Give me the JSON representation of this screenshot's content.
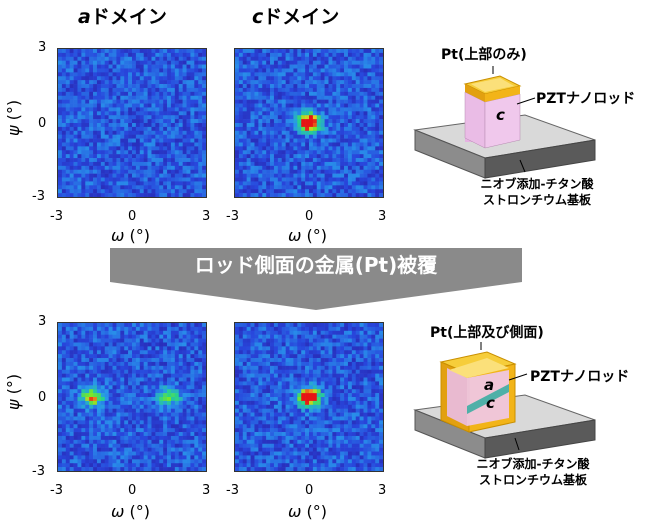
{
  "titles": {
    "a_domain": {
      "letter": "a",
      "text": "ドメイン"
    },
    "c_domain": {
      "letter": "c",
      "text": "ドメイン"
    }
  },
  "axes": {
    "x_label": {
      "symbol": "ω",
      "unit": " (°)"
    },
    "y_label": {
      "symbol": "ψ",
      "unit": " (°)"
    },
    "ticks": [
      "-3",
      "0",
      "3"
    ],
    "range": [
      -3,
      3
    ]
  },
  "arrow": {
    "label": "ロッド側面の金属(Pt)被覆"
  },
  "diagram_top": {
    "pt_label": "Pt(上部のみ)",
    "rod_label": "PZTナノロッド",
    "rod_letter": "c",
    "substrate_label_line1": "ニオブ添加-チタン酸",
    "substrate_label_line2": "ストロンチウム基板"
  },
  "diagram_bottom": {
    "pt_label": "Pt(上部及び側面)",
    "rod_label": "PZTナノロッド",
    "rod_letter_a": "a",
    "rod_letter_c": "c",
    "substrate_label_line1": "ニオブ添加-チタン酸",
    "substrate_label_line2": "ストロンチウム基板"
  },
  "colors": {
    "map_background": "#2a3fc8",
    "arrow": "#8a8a8a",
    "pt_gold": "#f2b418",
    "rod_pink": "#f0c8ec",
    "substrate": "#8c8c8c"
  },
  "maps": [
    {
      "panel": "top-left",
      "peaks": []
    },
    {
      "panel": "top-right",
      "peaks": [
        {
          "x": 0,
          "y": 0,
          "intensity": "high"
        }
      ]
    },
    {
      "panel": "bottom-left",
      "peaks": [
        {
          "x": -1.6,
          "y": 0,
          "intensity": "medium"
        },
        {
          "x": 1.5,
          "y": 0,
          "intensity": "low"
        }
      ]
    },
    {
      "panel": "bottom-right",
      "peaks": [
        {
          "x": 0,
          "y": 0,
          "intensity": "high"
        }
      ]
    }
  ]
}
